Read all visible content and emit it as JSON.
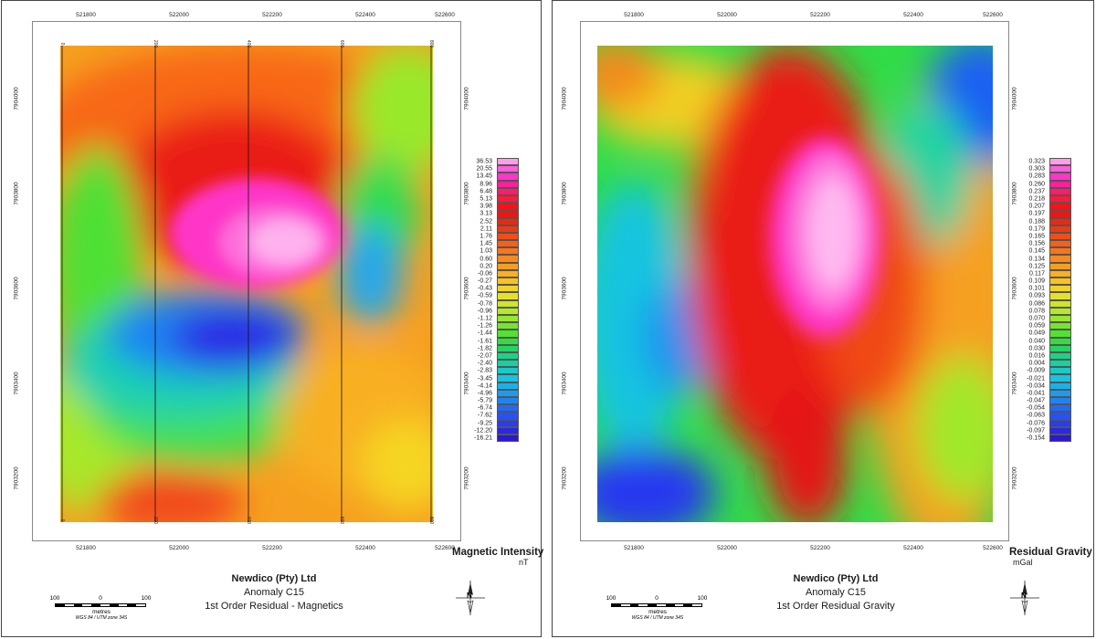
{
  "panels": [
    {
      "company": "Newdico (Pty) Ltd",
      "anomaly": "Anomaly C15",
      "product": "1st Order Residual - Magnetics",
      "legend_title": "Magnetic Intensity",
      "legend_unit": "nT",
      "legend_values": [
        "36.53",
        "20.55",
        "13.45",
        "8.96",
        "6.48",
        "5.13",
        "3.98",
        "3.13",
        "2.52",
        "2.11",
        "1.76",
        "1.45",
        "1.03",
        "0.60",
        "0.20",
        "-0.06",
        "-0.27",
        "-0.43",
        "-0.59",
        "-0.78",
        "-0.96",
        "-1.12",
        "-1.26",
        "-1.44",
        "-1.61",
        "-1.82",
        "-2.07",
        "-2.40",
        "-2.83",
        "-3.45",
        "-4.14",
        "-4.96",
        "-5.79",
        "-6.74",
        "-7.62",
        "-9.25",
        "-12.20",
        "-16.21"
      ],
      "x_ticks": [
        "521800",
        "522000",
        "522200",
        "522400",
        "522600"
      ],
      "y_ticks": [
        "7904000",
        "7903800",
        "7903600",
        "7903400",
        "7903200"
      ],
      "line_labels": [
        "0",
        "200",
        "400",
        "600",
        "800"
      ],
      "scale_labels": [
        "100",
        "0",
        "100"
      ],
      "scale_unit": "metres",
      "projection": "WGS 84 / UTM zone 34S"
    },
    {
      "company": "Newdico (Pty) Ltd",
      "anomaly": "Anomaly C15",
      "product": "1st Order Residual Gravity",
      "legend_title": "Residual Gravity",
      "legend_unit": "mGal",
      "legend_values": [
        "0.323",
        "0.303",
        "0.283",
        "0.260",
        "0.237",
        "0.218",
        "0.207",
        "0.197",
        "0.188",
        "0.179",
        "0.165",
        "0.156",
        "0.145",
        "0.134",
        "0.125",
        "0.117",
        "0.109",
        "0.101",
        "0.093",
        "0.086",
        "0.078",
        "0.070",
        "0.059",
        "0.049",
        "0.040",
        "0.030",
        "0.016",
        "0.004",
        "-0.009",
        "-0.021",
        "-0.034",
        "-0.041",
        "-0.047",
        "-0.054",
        "-0.063",
        "-0.076",
        "-0.097",
        "-0.154"
      ],
      "x_ticks": [
        "521800",
        "522000",
        "522200",
        "522400",
        "522600"
      ],
      "y_ticks": [
        "7904000",
        "7903800",
        "7903600",
        "7903400",
        "7903200"
      ],
      "scale_labels": [
        "100",
        "0",
        "100"
      ],
      "scale_unit": "metres",
      "projection": "WGS 84 / UTM zone 34S"
    }
  ],
  "north_label": "N",
  "legend_colors": [
    "#ff9ee8",
    "#ff5fd9",
    "#ff35c8",
    "#ff1f9a",
    "#ff1d6a",
    "#ff1a3a",
    "#f5121a",
    "#ee1612",
    "#e82a12",
    "#ec3a14",
    "#f24d16",
    "#f66018",
    "#f8751a",
    "#fa8a1c",
    "#fa9d1e",
    "#fab020",
    "#f8c222",
    "#f2d424",
    "#e4e226",
    "#cee628",
    "#b4e82a",
    "#96e82c",
    "#74e62e",
    "#52e230",
    "#34dc40",
    "#22d660",
    "#1ad384",
    "#16d0a6",
    "#14ccc8",
    "#14c4e0",
    "#16b2ec",
    "#1a9cf0",
    "#1e84f2",
    "#226af4",
    "#2652f4",
    "#283cf0",
    "#2a28e4",
    "#2c18d0"
  ]
}
